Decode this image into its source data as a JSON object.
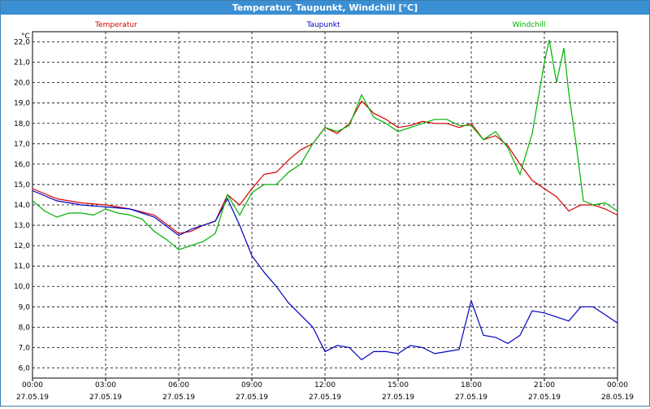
{
  "window": {
    "title": "Temperatur, Taupunkt, Windchill [°C]"
  },
  "colors": {
    "titlebar": "#3b8fd3",
    "temperatur": "#d40000",
    "taupunkt": "#0000c0",
    "windchill": "#00b000",
    "grid": "#000000",
    "frame": "#000000"
  },
  "chart_data": {
    "type": "line",
    "title": "Temperatur, Taupunkt, Windchill [°C]",
    "ylabel": "°C",
    "xlabel": "",
    "ylim": [
      5.5,
      22.5
    ],
    "xlim": [
      0,
      24
    ],
    "grid": true,
    "legend_placement": "top",
    "y_ticks": [
      "6,0",
      "7,0",
      "8,0",
      "9,0",
      "10,0",
      "11,0",
      "12,0",
      "13,0",
      "14,0",
      "15,0",
      "16,0",
      "17,0",
      "18,0",
      "19,0",
      "20,0",
      "21,0",
      "22,0"
    ],
    "x_ticks": [
      {
        "time": "00:00",
        "date": "27.05.19"
      },
      {
        "time": "03:00",
        "date": "27.05.19"
      },
      {
        "time": "06:00",
        "date": "27.05.19"
      },
      {
        "time": "09:00",
        "date": "27.05.19"
      },
      {
        "time": "12:00",
        "date": "27.05.19"
      },
      {
        "time": "15:00",
        "date": "27.05.19"
      },
      {
        "time": "18:00",
        "date": "27.05.19"
      },
      {
        "time": "21:00",
        "date": "27.05.19"
      },
      {
        "time": "00:00",
        "date": "28.05.19"
      }
    ],
    "series": [
      {
        "name": "Temperatur",
        "color": "#d40000",
        "x": [
          0,
          1,
          2,
          3,
          4,
          5,
          6,
          6.5,
          7,
          7.5,
          8,
          8.5,
          9,
          9.5,
          10,
          10.5,
          11,
          11.5,
          12,
          12.5,
          13,
          13.5,
          14,
          14.5,
          15,
          15.5,
          16,
          16.5,
          17,
          17.5,
          18,
          18.5,
          19,
          19.5,
          20,
          20.5,
          21,
          21.5,
          22,
          22.5,
          23,
          23.5,
          24
        ],
        "y": [
          14.8,
          14.3,
          14.1,
          14.0,
          13.8,
          13.5,
          12.6,
          12.7,
          13.0,
          13.2,
          14.5,
          14.0,
          14.8,
          15.5,
          15.6,
          16.2,
          16.7,
          17.0,
          17.8,
          17.5,
          18.0,
          19.1,
          18.5,
          18.2,
          17.8,
          17.9,
          18.1,
          18.0,
          18.0,
          17.8,
          18.0,
          17.2,
          17.4,
          16.9,
          16.0,
          15.2,
          14.8,
          14.4,
          13.7,
          14.0,
          14.0,
          13.8,
          13.5
        ]
      },
      {
        "name": "Taupunkt",
        "color": "#0000c0",
        "x": [
          0,
          1,
          2,
          3,
          4,
          5,
          6,
          6.5,
          7,
          7.5,
          8,
          8.5,
          9,
          9.5,
          10,
          10.5,
          11,
          11.5,
          12,
          12.5,
          13,
          13.5,
          14,
          14.5,
          15,
          15.5,
          16,
          16.5,
          17,
          17.5,
          18,
          18.5,
          19,
          19.5,
          20,
          20.5,
          21,
          21.5,
          22,
          22.5,
          23,
          23.5,
          24
        ],
        "y": [
          14.7,
          14.2,
          14.0,
          13.9,
          13.8,
          13.4,
          12.5,
          12.8,
          13.0,
          13.2,
          14.3,
          13.0,
          11.5,
          10.7,
          10.0,
          9.2,
          8.6,
          8.0,
          6.8,
          7.1,
          7.0,
          6.4,
          6.8,
          6.8,
          6.7,
          7.1,
          7.0,
          6.7,
          6.8,
          6.9,
          9.3,
          7.6,
          7.5,
          7.2,
          7.6,
          8.8,
          8.7,
          8.5,
          8.3,
          9.0,
          9.0,
          8.6,
          8.2
        ]
      },
      {
        "name": "Windchill",
        "color": "#00b000",
        "x": [
          0,
          0.5,
          1,
          1.5,
          2,
          2.5,
          3,
          3.5,
          4,
          4.5,
          5,
          5.5,
          6,
          6.5,
          7,
          7.5,
          8,
          8.5,
          9,
          9.5,
          10,
          10.5,
          11,
          11.5,
          12,
          12.5,
          13,
          13.5,
          14,
          14.5,
          15,
          15.5,
          16,
          16.5,
          17,
          17.5,
          18,
          18.5,
          19,
          19.5,
          20,
          20.5,
          21,
          21.2,
          21.5,
          21.8,
          22,
          22.3,
          22.6,
          23,
          23.5,
          24
        ],
        "y": [
          14.2,
          13.7,
          13.4,
          13.6,
          13.6,
          13.5,
          13.8,
          13.6,
          13.5,
          13.3,
          12.7,
          12.3,
          11.8,
          12.0,
          12.2,
          12.6,
          14.5,
          13.5,
          14.6,
          15.0,
          15.0,
          15.6,
          16.0,
          17.0,
          17.8,
          17.6,
          17.9,
          19.4,
          18.3,
          18.0,
          17.6,
          17.8,
          18.0,
          18.2,
          18.2,
          17.9,
          17.9,
          17.2,
          17.6,
          16.8,
          15.5,
          17.5,
          21.0,
          22.1,
          20.0,
          21.7,
          19.5,
          17.0,
          14.2,
          14.0,
          14.1,
          13.7
        ]
      }
    ]
  }
}
